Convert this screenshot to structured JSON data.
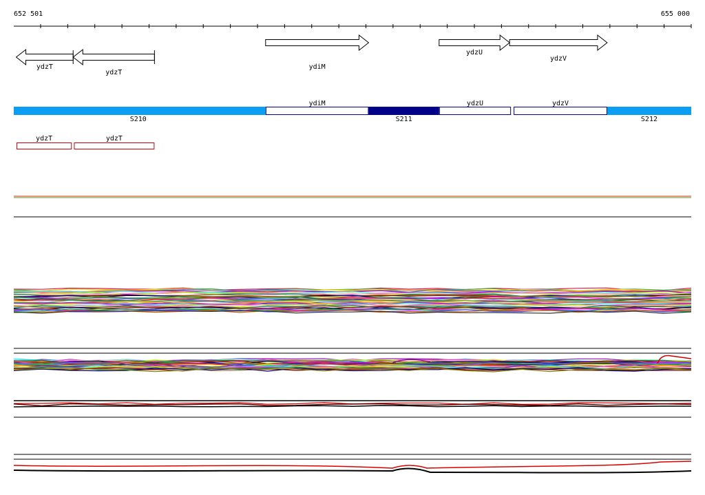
{
  "ruler": {
    "start_label": "652 501",
    "end_label": "655 000",
    "start_bp": 652501,
    "end_bp": 655000
  },
  "genes": [
    {
      "id": "g-ydzT-1",
      "name": "ydzT",
      "strand": "-",
      "start": 652510,
      "end": 652720
    },
    {
      "id": "g-ydzT-2",
      "name": "ydzT",
      "strand": "-",
      "start": 652720,
      "end": 653020
    },
    {
      "id": "g-ydiM",
      "name": "ydiM",
      "strand": "+",
      "start": 653430,
      "end": 653810
    },
    {
      "id": "g-ydzU",
      "name": "ydzU",
      "strand": "+",
      "start": 654070,
      "end": 654330
    },
    {
      "id": "g-ydzV",
      "name": "ydzV",
      "strand": "+",
      "start": 654330,
      "end": 654690
    }
  ],
  "segments": [
    {
      "label": "S210",
      "start": 652501,
      "end": 653430,
      "type": "intergenic"
    },
    {
      "label": "ydiM",
      "start": 653430,
      "end": 653810,
      "type": "gene"
    },
    {
      "label": "S211",
      "start": 653810,
      "end": 654070,
      "type": "intergenic-dark"
    },
    {
      "label": "ydzU",
      "start": 654070,
      "end": 654335,
      "type": "gene"
    },
    {
      "label": "ydzV",
      "start": 654345,
      "end": 654690,
      "type": "gene"
    },
    {
      "label": "S212",
      "start": 654690,
      "end": 655000,
      "type": "intergenic"
    }
  ],
  "segment_labels": [
    {
      "text": "S210",
      "pos": 652960
    },
    {
      "text": "S211",
      "pos": 653940
    },
    {
      "text": "S212",
      "pos": 654845
    }
  ],
  "red_boxes": [
    {
      "name": "ydzT",
      "start": 652511,
      "end": 652715
    },
    {
      "name": "ydzT",
      "start": 652723,
      "end": 653020
    }
  ],
  "colors": {
    "segment_light": "#0c9ef2",
    "segment_dark": "#00008b",
    "gene_outline": "#00008b",
    "red_box": "#cc0000",
    "track_line_green": "#5b8c2a",
    "track_line_red": "#cc3300"
  }
}
